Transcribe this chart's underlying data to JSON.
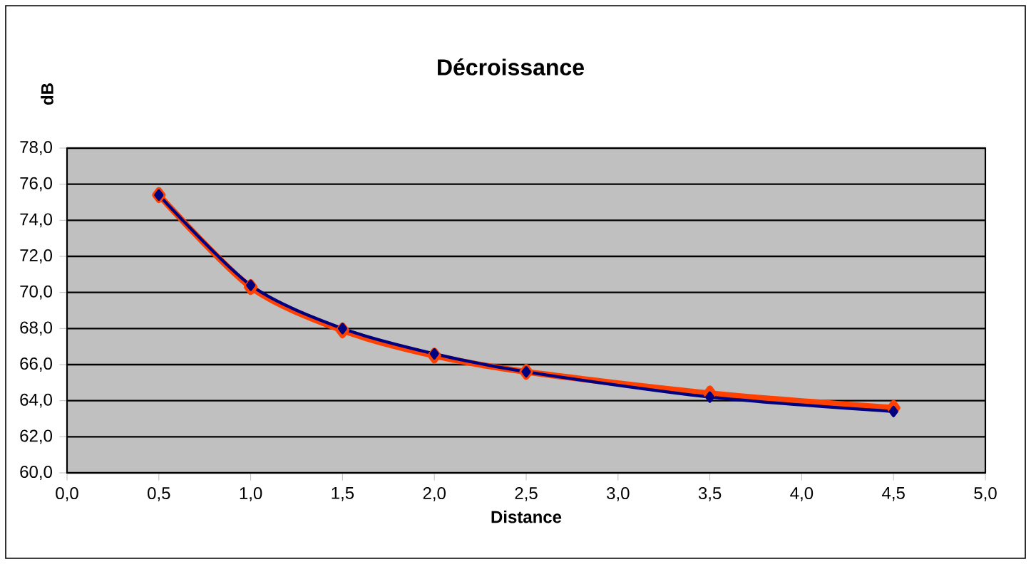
{
  "chart_data": {
    "type": "line",
    "title": "Décroissance",
    "xlabel": "Distance",
    "ylabel": "dB",
    "x": [
      0.5,
      1.0,
      1.5,
      2.0,
      2.5,
      3.5,
      4.5
    ],
    "series": [
      {
        "color": "#ff4000",
        "values": [
          75.4,
          70.3,
          67.9,
          66.5,
          65.6,
          64.4,
          63.6
        ]
      },
      {
        "color": "#000080",
        "values": [
          75.4,
          70.4,
          68.0,
          66.6,
          65.6,
          64.2,
          63.4
        ]
      }
    ],
    "xlim": [
      0,
      5
    ],
    "ylim": [
      60,
      78
    ],
    "xticks": [
      {
        "value": 0,
        "label": "0,0"
      },
      {
        "value": 0.5,
        "label": "0,5"
      },
      {
        "value": 1,
        "label": "1,0"
      },
      {
        "value": 1.5,
        "label": "1,5"
      },
      {
        "value": 2,
        "label": "2,0"
      },
      {
        "value": 2.5,
        "label": "2,5"
      },
      {
        "value": 3,
        "label": "3,0"
      },
      {
        "value": 3.5,
        "label": "3,5"
      },
      {
        "value": 4,
        "label": "4,0"
      },
      {
        "value": 4.5,
        "label": "4,5"
      },
      {
        "value": 5,
        "label": "5,0"
      }
    ],
    "yticks": [
      {
        "value": 60,
        "label": "60,0"
      },
      {
        "value": 62,
        "label": "62,0"
      },
      {
        "value": 64,
        "label": "64,0"
      },
      {
        "value": 66,
        "label": "66,0"
      },
      {
        "value": 68,
        "label": "68,0"
      },
      {
        "value": 70,
        "label": "70,0"
      },
      {
        "value": 72,
        "label": "72,0"
      },
      {
        "value": 74,
        "label": "74,0"
      },
      {
        "value": 76,
        "label": "76,0"
      },
      {
        "value": 78,
        "label": "78,0"
      }
    ],
    "grid": "y",
    "marker": "diamond",
    "line_style": "solid"
  }
}
